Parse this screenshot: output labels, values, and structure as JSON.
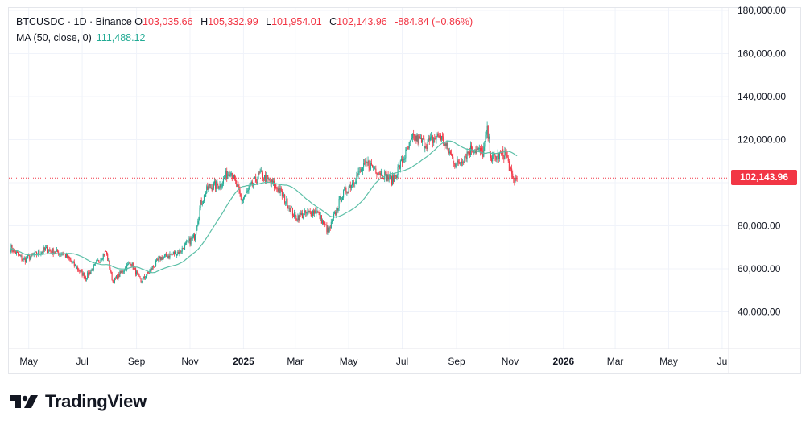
{
  "legend": {
    "symbol": "BTCUSDC · 1D · Binance",
    "open_label": "O",
    "open": "103,035.66",
    "high_label": "H",
    "high": "105,332.99",
    "low_label": "L",
    "low": "101,954.01",
    "close_label": "C",
    "close": "102,143.96",
    "change": "-884.84 (−0.86%)",
    "ma_label": "MA (50, close, 0)",
    "ma_value": "111,488.12"
  },
  "last_price": "102,143.96",
  "brand": {
    "name": "TradingView",
    "logo": "tradingview-logo-icon"
  },
  "colors": {
    "up": "#22ab94",
    "down": "#f23645",
    "ma": "#5cbfa7",
    "price_line": "#f23645"
  },
  "chart_data": {
    "type": "candlestick",
    "symbol": "BTCUSDC",
    "interval": "1D",
    "exchange": "Binance",
    "y_axis": {
      "ticks": [
        180000,
        160000,
        140000,
        120000,
        100000,
        80000,
        60000,
        40000
      ],
      "tick_labels": [
        "180,000.00",
        "160,000.00",
        "140,000.00",
        "120,000.00",
        "",
        "80,000.00",
        "60,000.00",
        "40,000.00"
      ],
      "range": [
        20000,
        181000
      ],
      "position": "right"
    },
    "x_axis": {
      "labels": [
        "May",
        "Jul",
        "Sep",
        "Nov",
        "2025",
        "Mar",
        "May",
        "Jul",
        "Sep",
        "Nov",
        "2026",
        "Mar",
        "May",
        "Ju"
      ],
      "bold_labels": [
        "2025",
        "2026"
      ]
    },
    "grid": true,
    "approx_close_path": [
      {
        "x": "2024-04-10",
        "close": 70000
      },
      {
        "x": "2024-04-25",
        "close": 64000
      },
      {
        "x": "2024-05-20",
        "close": 69000
      },
      {
        "x": "2024-06-10",
        "close": 67000
      },
      {
        "x": "2024-07-05",
        "close": 56000
      },
      {
        "x": "2024-07-28",
        "close": 68000
      },
      {
        "x": "2024-08-05",
        "close": 54000
      },
      {
        "x": "2024-08-25",
        "close": 63000
      },
      {
        "x": "2024-09-06",
        "close": 54000
      },
      {
        "x": "2024-09-28",
        "close": 65000
      },
      {
        "x": "2024-10-20",
        "close": 68000
      },
      {
        "x": "2024-11-06",
        "close": 75000
      },
      {
        "x": "2024-11-13",
        "close": 90000
      },
      {
        "x": "2024-11-22",
        "close": 98000
      },
      {
        "x": "2024-12-05",
        "close": 99000
      },
      {
        "x": "2024-12-17",
        "close": 106000
      },
      {
        "x": "2024-12-30",
        "close": 92000
      },
      {
        "x": "2025-01-20",
        "close": 104000
      },
      {
        "x": "2025-02-10",
        "close": 97000
      },
      {
        "x": "2025-03-01",
        "close": 84000
      },
      {
        "x": "2025-03-25",
        "close": 87000
      },
      {
        "x": "2025-04-08",
        "close": 77000
      },
      {
        "x": "2025-04-22",
        "close": 93000
      },
      {
        "x": "2025-05-10",
        "close": 103000
      },
      {
        "x": "2025-05-22",
        "close": 109000
      },
      {
        "x": "2025-06-20",
        "close": 101000
      },
      {
        "x": "2025-07-14",
        "close": 121000
      },
      {
        "x": "2025-07-28",
        "close": 118000
      },
      {
        "x": "2025-08-13",
        "close": 122000
      },
      {
        "x": "2025-09-01",
        "close": 108000
      },
      {
        "x": "2025-09-18",
        "close": 116000
      },
      {
        "x": "2025-10-01",
        "close": 114000
      },
      {
        "x": "2025-10-06",
        "close": 124000
      },
      {
        "x": "2025-10-11",
        "close": 111000
      },
      {
        "x": "2025-10-27",
        "close": 114000
      },
      {
        "x": "2025-11-04",
        "close": 101000
      },
      {
        "x": "2025-11-09",
        "close": 102144
      }
    ],
    "ma": {
      "name": "MA (50, close, 0)",
      "last": 111488.12
    },
    "last_close": 102143.96
  }
}
